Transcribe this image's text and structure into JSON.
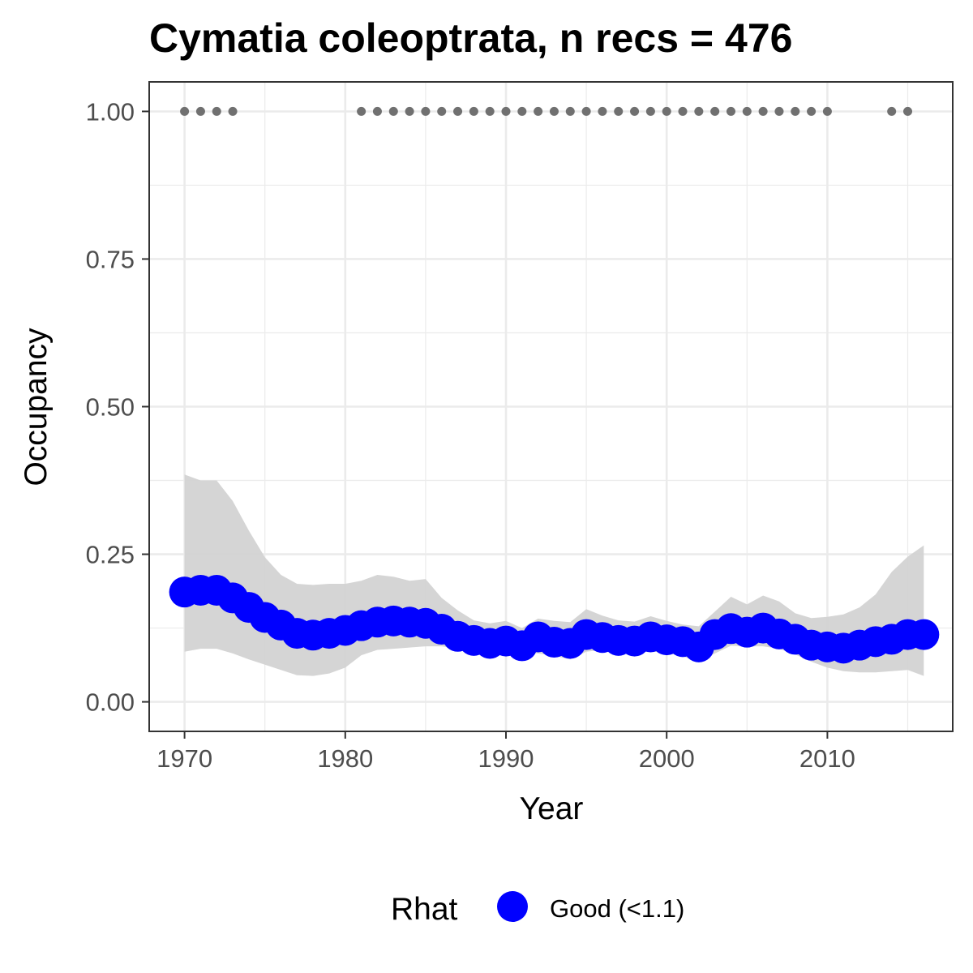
{
  "chart_data": {
    "type": "line",
    "title": "Cymatia coleoptrata, n recs = 476",
    "xlabel": "Year",
    "ylabel": "Occupancy",
    "xlim": [
      1967.8,
      2017.8
    ],
    "ylim": [
      -0.05,
      1.05
    ],
    "x_ticks": [
      1970,
      1980,
      1990,
      2000,
      2010
    ],
    "x_tick_labels": [
      "1970",
      "1980",
      "1990",
      "2000",
      "2010"
    ],
    "y_ticks": [
      0,
      0.25,
      0.5,
      0.75,
      1.0
    ],
    "y_tick_labels": [
      "0.00",
      "0.25",
      "0.50",
      "0.75",
      "1.00"
    ],
    "grid": true,
    "legend": {
      "title": "Rhat",
      "position": "bottom",
      "entries": [
        {
          "label": "Good (<1.1)",
          "color": "#0000ff"
        }
      ]
    },
    "colors": {
      "series": "#0000ff",
      "ribbon": "#d3d3d3",
      "record_points": "#707070"
    },
    "x": [
      1970,
      1971,
      1972,
      1973,
      1974,
      1975,
      1976,
      1977,
      1978,
      1979,
      1980,
      1981,
      1982,
      1983,
      1984,
      1985,
      1986,
      1987,
      1988,
      1989,
      1990,
      1991,
      1992,
      1993,
      1994,
      1995,
      1996,
      1997,
      1998,
      1999,
      2000,
      2001,
      2002,
      2003,
      2004,
      2005,
      2006,
      2007,
      2008,
      2009,
      2010,
      2011,
      2012,
      2013,
      2014,
      2015,
      2016
    ],
    "series": [
      {
        "values": [
          0.186,
          0.189,
          0.189,
          0.176,
          0.16,
          0.143,
          0.13,
          0.116,
          0.113,
          0.116,
          0.121,
          0.129,
          0.135,
          0.137,
          0.135,
          0.133,
          0.123,
          0.111,
          0.104,
          0.099,
          0.103,
          0.095,
          0.11,
          0.101,
          0.099,
          0.114,
          0.109,
          0.104,
          0.103,
          0.11,
          0.105,
          0.102,
          0.093,
          0.114,
          0.124,
          0.118,
          0.125,
          0.115,
          0.106,
          0.096,
          0.093,
          0.091,
          0.096,
          0.102,
          0.106,
          0.114,
          0.114
        ]
      }
    ],
    "ribbon": {
      "lower": [
        0.085,
        0.09,
        0.09,
        0.082,
        0.072,
        0.063,
        0.054,
        0.045,
        0.044,
        0.048,
        0.058,
        0.079,
        0.088,
        0.09,
        0.092,
        0.094,
        0.094,
        0.09,
        0.086,
        0.083,
        0.085,
        0.083,
        0.082,
        0.078,
        0.072,
        0.085,
        0.088,
        0.086,
        0.084,
        0.085,
        0.084,
        0.077,
        0.068,
        0.082,
        0.095,
        0.094,
        0.094,
        0.09,
        0.08,
        0.068,
        0.058,
        0.052,
        0.05,
        0.05,
        0.052,
        0.054,
        0.044
      ],
      "upper": [
        0.385,
        0.375,
        0.375,
        0.34,
        0.29,
        0.245,
        0.215,
        0.2,
        0.198,
        0.2,
        0.2,
        0.205,
        0.215,
        0.212,
        0.205,
        0.208,
        0.176,
        0.155,
        0.138,
        0.133,
        0.137,
        0.125,
        0.141,
        0.137,
        0.135,
        0.157,
        0.146,
        0.138,
        0.136,
        0.145,
        0.137,
        0.131,
        0.128,
        0.153,
        0.178,
        0.165,
        0.18,
        0.17,
        0.15,
        0.142,
        0.144,
        0.148,
        0.16,
        0.182,
        0.22,
        0.246,
        0.265
      ]
    },
    "record_years": [
      1970,
      1971,
      1972,
      1973,
      1981,
      1982,
      1983,
      1984,
      1985,
      1986,
      1987,
      1988,
      1989,
      1990,
      1991,
      1992,
      1993,
      1994,
      1995,
      1996,
      1997,
      1998,
      1999,
      2000,
      2001,
      2002,
      2003,
      2004,
      2005,
      2006,
      2007,
      2008,
      2009,
      2010,
      2014,
      2015
    ],
    "record_value": 1.0
  }
}
